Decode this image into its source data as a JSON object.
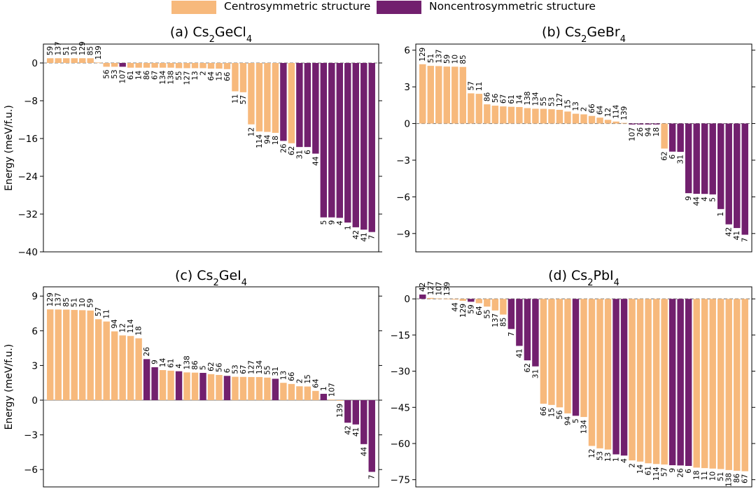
{
  "legend": {
    "centro_label": "Centrosymmetric structure",
    "noncentro_label": "Noncentrosymmetric structure"
  },
  "colors": {
    "centro": "#f7b97c",
    "noncentro": "#72206e"
  },
  "chart_data": [
    {
      "type": "bar",
      "panel": "(a)",
      "compound": "Cs2GeCl4",
      "ylabel": "Energy (meV/f.u.)",
      "ylim": [
        -40,
        4
      ],
      "yticks": [
        0,
        -8,
        -16,
        -24,
        -32,
        -40
      ],
      "zero_line": "dashed",
      "categories": [
        "59",
        "137",
        "51",
        "10",
        "129",
        "85",
        "139",
        "56",
        "53",
        "107",
        "61",
        "14",
        "86",
        "67",
        "134",
        "138",
        "55",
        "127",
        "13",
        "2",
        "64",
        "15",
        "66",
        "11",
        "57",
        "12",
        "114",
        "94",
        "18",
        "26",
        "62",
        "31",
        "6",
        "44",
        "5",
        "9",
        "4",
        "1",
        "42",
        "41",
        "7"
      ],
      "values": [
        1.0,
        1.0,
        1.0,
        1.0,
        1.0,
        1.0,
        0.1,
        -0.8,
        -0.8,
        -0.8,
        -1.0,
        -1.0,
        -1.0,
        -1.0,
        -1.0,
        -1.0,
        -1.1,
        -1.1,
        -1.1,
        -1.1,
        -1.2,
        -1.2,
        -1.3,
        -6.0,
        -6.2,
        -13.0,
        -14.5,
        -14.6,
        -14.8,
        -16.5,
        -17.0,
        -17.8,
        -17.8,
        -19.2,
        -32.7,
        -32.7,
        -32.8,
        -33.8,
        -34.8,
        -35.3,
        -35.8
      ],
      "symmetry": [
        "c",
        "c",
        "c",
        "c",
        "c",
        "c",
        "c",
        "c",
        "c",
        "n",
        "c",
        "c",
        "c",
        "c",
        "c",
        "c",
        "c",
        "c",
        "c",
        "c",
        "c",
        "c",
        "c",
        "c",
        "c",
        "c",
        "c",
        "c",
        "c",
        "n",
        "c",
        "n",
        "n",
        "n",
        "n",
        "n",
        "n",
        "n",
        "n",
        "n",
        "n"
      ]
    },
    {
      "type": "bar",
      "panel": "(b)",
      "compound": "Cs2GeBr4",
      "ylabel": "",
      "ylim": [
        -10.5,
        6.5
      ],
      "yticks": [
        6,
        3,
        0,
        -3,
        -6,
        -9
      ],
      "zero_line": "dashed",
      "categories": [
        "129",
        "51",
        "137",
        "59",
        "10",
        "85",
        "57",
        "11",
        "86",
        "56",
        "67",
        "61",
        "14",
        "138",
        "134",
        "55",
        "53",
        "127",
        "15",
        "13",
        "2",
        "66",
        "64",
        "12",
        "114",
        "139",
        "107",
        "26",
        "94",
        "18",
        "62",
        "6",
        "31",
        "9",
        "44",
        "4",
        "5",
        "1",
        "42",
        "41",
        "7"
      ],
      "values": [
        4.85,
        4.72,
        4.7,
        4.66,
        4.65,
        4.63,
        2.47,
        2.43,
        1.57,
        1.46,
        1.4,
        1.37,
        1.35,
        1.26,
        1.21,
        1.2,
        1.17,
        1.12,
        0.98,
        0.8,
        0.75,
        0.62,
        0.48,
        0.3,
        0.16,
        0.05,
        -0.08,
        -0.08,
        -0.08,
        -0.08,
        -2.05,
        -2.3,
        -2.32,
        -5.7,
        -5.75,
        -5.76,
        -5.8,
        -7.0,
        -8.25,
        -8.55,
        -9.1
      ],
      "symmetry": [
        "c",
        "c",
        "c",
        "c",
        "c",
        "c",
        "c",
        "c",
        "c",
        "c",
        "c",
        "c",
        "c",
        "c",
        "c",
        "c",
        "c",
        "c",
        "c",
        "c",
        "c",
        "c",
        "c",
        "c",
        "c",
        "c",
        "n",
        "n",
        "n",
        "n",
        "c",
        "n",
        "n",
        "n",
        "n",
        "n",
        "n",
        "n",
        "n",
        "n",
        "n"
      ]
    },
    {
      "type": "bar",
      "panel": "(c)",
      "compound": "Cs2GeI4",
      "ylabel": "Energy (meV/f.u.)",
      "ylim": [
        -7.5,
        9.8
      ],
      "yticks": [
        9,
        6,
        3,
        0,
        -3,
        -6
      ],
      "zero_line": "solid",
      "categories": [
        "129",
        "137",
        "85",
        "51",
        "10",
        "59",
        "57",
        "11",
        "94",
        "12",
        "114",
        "18",
        "26",
        "9",
        "14",
        "61",
        "4",
        "138",
        "86",
        "5",
        "62",
        "56",
        "6",
        "53",
        "67",
        "127",
        "134",
        "55",
        "31",
        "13",
        "66",
        "2",
        "15",
        "64",
        "1",
        "107",
        "139",
        "42",
        "41",
        "44",
        "7"
      ],
      "values": [
        7.85,
        7.84,
        7.83,
        7.8,
        7.78,
        7.75,
        7.0,
        6.8,
        5.95,
        5.6,
        5.55,
        5.35,
        3.55,
        2.85,
        2.6,
        2.55,
        2.5,
        2.4,
        2.38,
        2.36,
        2.25,
        2.18,
        2.1,
        2.02,
        2.01,
        2.0,
        2.0,
        1.95,
        1.85,
        1.5,
        1.4,
        1.2,
        1.18,
        0.8,
        0.55,
        0.05,
        -0.05,
        -1.95,
        -2.1,
        -3.8,
        -6.2
      ],
      "symmetry": [
        "c",
        "c",
        "c",
        "c",
        "c",
        "c",
        "c",
        "c",
        "c",
        "c",
        "c",
        "c",
        "n",
        "n",
        "c",
        "c",
        "n",
        "c",
        "c",
        "n",
        "c",
        "c",
        "n",
        "c",
        "c",
        "c",
        "c",
        "c",
        "n",
        "c",
        "c",
        "c",
        "c",
        "c",
        "n",
        "c",
        "c",
        "n",
        "n",
        "n",
        "n"
      ]
    },
    {
      "type": "bar",
      "panel": "(d)",
      "compound": "Cs2PbI4",
      "ylabel": "",
      "ylim": [
        -78,
        5
      ],
      "yticks": [
        0,
        -15,
        -30,
        -45,
        -60,
        -75
      ],
      "zero_line": "dashed",
      "categories": [
        "42",
        "127",
        "107",
        "139",
        "44",
        "129",
        "59",
        "64",
        "55",
        "137",
        "85",
        "7",
        "41",
        "62",
        "31",
        "66",
        "15",
        "56",
        "94",
        "5",
        "134",
        "12",
        "53",
        "13",
        "1",
        "4",
        "2",
        "14",
        "61",
        "114",
        "57",
        "9",
        "26",
        "6",
        "18",
        "11",
        "10",
        "51",
        "138",
        "86",
        "67"
      ],
      "values": [
        1.8,
        0.4,
        0.2,
        0.1,
        -0.3,
        -0.8,
        -1.2,
        -1.8,
        -3.2,
        -4.8,
        -6.5,
        -12.5,
        -19.5,
        -25.5,
        -28.0,
        -43.5,
        -44.0,
        -45.0,
        -47.5,
        -48.5,
        -49.0,
        -61.0,
        -62.0,
        -62.5,
        -64.5,
        -65.0,
        -67.0,
        -67.5,
        -68.2,
        -68.5,
        -68.7,
        -69.0,
        -69.1,
        -69.3,
        -70.0,
        -70.2,
        -70.4,
        -70.6,
        -71.0,
        -71.3,
        -71.5
      ],
      "symmetry": [
        "n",
        "c",
        "c",
        "c",
        "c",
        "c",
        "n",
        "c",
        "c",
        "c",
        "c",
        "n",
        "n",
        "n",
        "n",
        "c",
        "c",
        "c",
        "c",
        "n",
        "c",
        "c",
        "c",
        "c",
        "n",
        "n",
        "c",
        "c",
        "c",
        "c",
        "c",
        "n",
        "n",
        "n",
        "c",
        "c",
        "c",
        "c",
        "c",
        "c",
        "c"
      ]
    }
  ]
}
